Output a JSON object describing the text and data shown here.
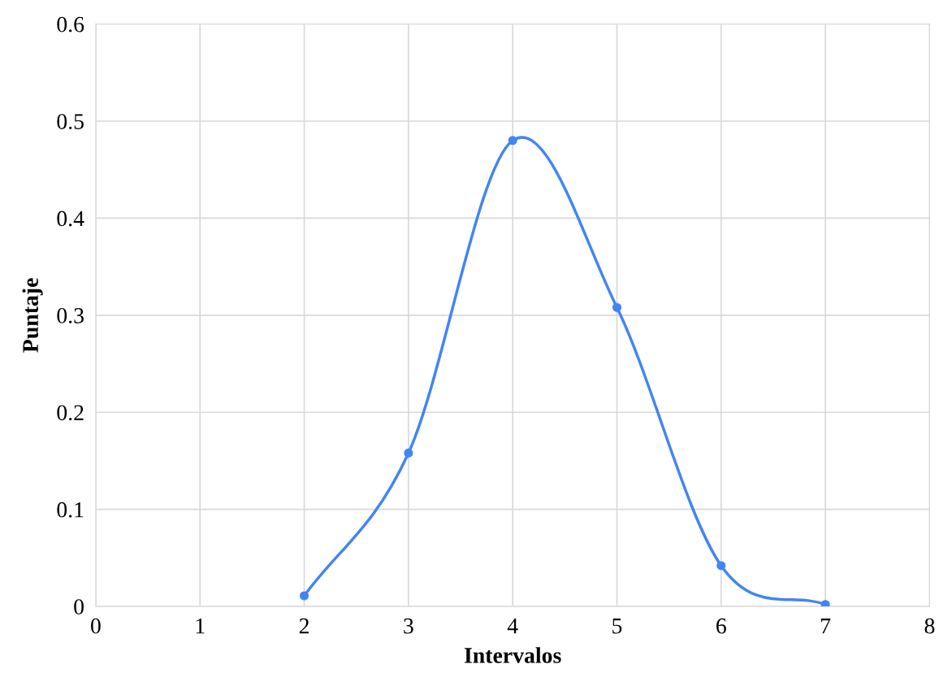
{
  "chart_data": {
    "type": "line",
    "xlabel": "Intervalos",
    "ylabel": "Puntaje",
    "x": [
      2,
      3,
      4,
      5,
      6,
      7
    ],
    "series": [
      {
        "color": "#4285f4",
        "values": [
          0.011,
          0.158,
          0.48,
          0.308,
          0.042,
          0.002
        ]
      }
    ],
    "xlim": [
      0,
      8
    ],
    "xticks": [
      0,
      1,
      2,
      3,
      4,
      5,
      6,
      7,
      8
    ],
    "ylim": [
      0,
      0.6
    ],
    "yticks": [
      0,
      0.1,
      0.2,
      0.3,
      0.4,
      0.5,
      0.6
    ],
    "grid": true,
    "marker": "circle",
    "line_style": "solid",
    "legend": false
  }
}
